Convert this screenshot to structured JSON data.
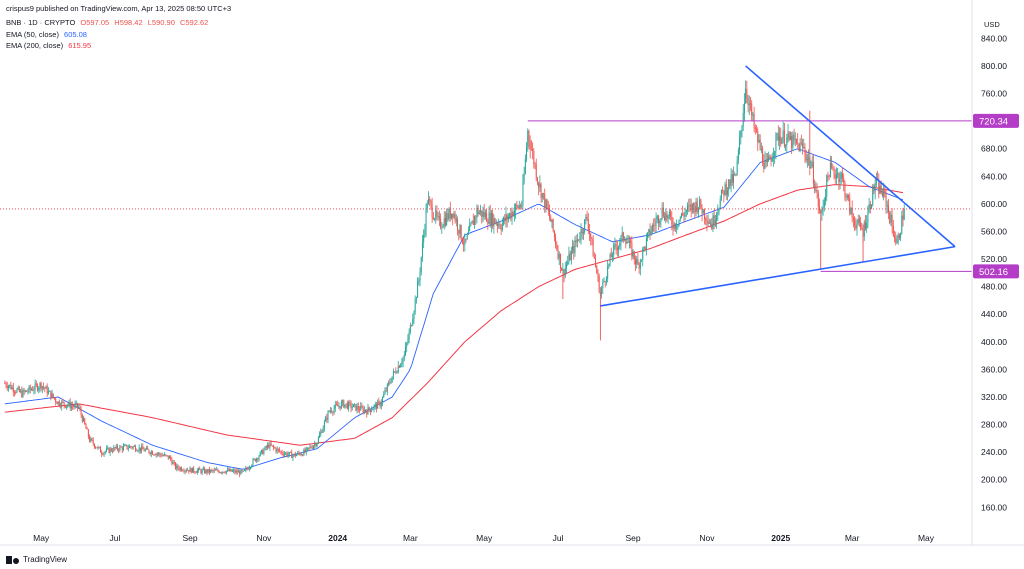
{
  "header": {
    "publisher_line": "crispus9 published on TradingView.com, Apr 13, 2025 08:50 UTC+3"
  },
  "legend": {
    "symbol_line": {
      "symbol": "BNB · 1D · CRYPTO",
      "open": "O597.05",
      "high": "H598.42",
      "low": "L590.90",
      "close": "C592.62"
    },
    "ema50": {
      "label": "EMA (50, close)",
      "value": "605.08"
    },
    "ema200": {
      "label": "EMA (200, close)",
      "value": "615.95"
    }
  },
  "currency": "USD",
  "colors": {
    "up": "#26a69a",
    "down": "#ef5350",
    "ema50": "#2962ff",
    "ema200": "#f23645",
    "trendline": "#2962ff",
    "level": "#b33dc6",
    "price_line": "#f23645"
  },
  "footer": {
    "brand": "TradingView"
  },
  "chart_data": {
    "type": "candlestick",
    "y_axis": {
      "ticks": [
        "160.00",
        "200.00",
        "240.00",
        "280.00",
        "320.00",
        "360.00",
        "400.00",
        "440.00",
        "480.00",
        "520.00",
        "560.00",
        "600.00",
        "640.00",
        "680.00",
        "720.00",
        "760.00",
        "800.00",
        "840.00"
      ],
      "range": [
        130,
        855
      ]
    },
    "x_axis": {
      "ticks": [
        "May",
        "Jul",
        "Sep",
        "Nov",
        "2024",
        "Mar",
        "May",
        "Jul",
        "Sep",
        "Nov",
        "2025",
        "Mar",
        "May"
      ],
      "bold_ticks": [
        "2024",
        "2025"
      ]
    },
    "price_labels": [
      {
        "text": "720.34",
        "value": 720.34,
        "kind": "level"
      },
      {
        "text": "502.16",
        "value": 502.16,
        "kind": "level"
      }
    ],
    "current_price": 592.62,
    "horizontal_levels": [
      720.34,
      502.16
    ],
    "trendlines": [
      {
        "name": "descending",
        "from": [
          "2024-12-03",
          800
        ],
        "to": [
          "2025-05-25",
          538
        ]
      },
      {
        "name": "ascending",
        "from": [
          "2024-08-05",
          452
        ],
        "to": [
          "2025-05-25",
          538
        ]
      }
    ],
    "close_path": [
      [
        "2023-04-01",
        340
      ],
      [
        "2023-04-15",
        325
      ],
      [
        "2023-05-01",
        338
      ],
      [
        "2023-05-15",
        312
      ],
      [
        "2023-06-01",
        305
      ],
      [
        "2023-06-10",
        258
      ],
      [
        "2023-06-20",
        240
      ],
      [
        "2023-07-01",
        245
      ],
      [
        "2023-07-15",
        248
      ],
      [
        "2023-08-01",
        240
      ],
      [
        "2023-08-15",
        232
      ],
      [
        "2023-08-20",
        218
      ],
      [
        "2023-09-01",
        214
      ],
      [
        "2023-09-15",
        212
      ],
      [
        "2023-10-01",
        213
      ],
      [
        "2023-10-15",
        210
      ],
      [
        "2023-10-25",
        230
      ],
      [
        "2023-11-05",
        250
      ],
      [
        "2023-11-15",
        240
      ],
      [
        "2023-11-25",
        235
      ],
      [
        "2023-12-05",
        240
      ],
      [
        "2023-12-15",
        255
      ],
      [
        "2023-12-25",
        300
      ],
      [
        "2024-01-05",
        310
      ],
      [
        "2024-01-15",
        305
      ],
      [
        "2024-01-25",
        300
      ],
      [
        "2024-02-05",
        310
      ],
      [
        "2024-02-15",
        350
      ],
      [
        "2024-02-25",
        380
      ],
      [
        "2024-03-01",
        420
      ],
      [
        "2024-03-08",
        490
      ],
      [
        "2024-03-15",
        605
      ],
      [
        "2024-03-25",
        570
      ],
      [
        "2024-04-05",
        590
      ],
      [
        "2024-04-15",
        540
      ],
      [
        "2024-04-25",
        590
      ],
      [
        "2024-05-05",
        580
      ],
      [
        "2024-05-15",
        570
      ],
      [
        "2024-05-25",
        590
      ],
      [
        "2024-06-01",
        600
      ],
      [
        "2024-06-06",
        705
      ],
      [
        "2024-06-15",
        630
      ],
      [
        "2024-06-25",
        575
      ],
      [
        "2024-07-05",
        500
      ],
      [
        "2024-07-15",
        540
      ],
      [
        "2024-07-25",
        580
      ],
      [
        "2024-08-05",
        470
      ],
      [
        "2024-08-15",
        530
      ],
      [
        "2024-08-25",
        555
      ],
      [
        "2024-09-05",
        510
      ],
      [
        "2024-09-15",
        560
      ],
      [
        "2024-09-25",
        590
      ],
      [
        "2024-10-05",
        570
      ],
      [
        "2024-10-15",
        590
      ],
      [
        "2024-10-25",
        600
      ],
      [
        "2024-11-05",
        570
      ],
      [
        "2024-11-15",
        620
      ],
      [
        "2024-11-25",
        640
      ],
      [
        "2024-12-03",
        770
      ],
      [
        "2024-12-10",
        710
      ],
      [
        "2024-12-20",
        650
      ],
      [
        "2024-12-30",
        700
      ],
      [
        "2025-01-10",
        690
      ],
      [
        "2025-01-20",
        680
      ],
      [
        "2025-01-27",
        650
      ],
      [
        "2025-02-03",
        580
      ],
      [
        "2025-02-10",
        650
      ],
      [
        "2025-02-20",
        640
      ],
      [
        "2025-03-01",
        580
      ],
      [
        "2025-03-10",
        560
      ],
      [
        "2025-03-20",
        630
      ],
      [
        "2025-03-28",
        610
      ],
      [
        "2025-04-07",
        540
      ],
      [
        "2025-04-13",
        592.62
      ]
    ],
    "wick_spikes": [
      [
        "2024-08-05",
        402
      ],
      [
        "2025-02-03",
        505
      ],
      [
        "2025-01-25",
        735
      ],
      [
        "2025-03-10",
        515
      ],
      [
        "2024-07-05",
        462
      ]
    ],
    "ema50_path": [
      [
        "2023-04-01",
        310
      ],
      [
        "2023-05-15",
        320
      ],
      [
        "2023-06-20",
        285
      ],
      [
        "2023-08-01",
        250
      ],
      [
        "2023-09-15",
        225
      ],
      [
        "2023-10-15",
        215
      ],
      [
        "2023-11-15",
        232
      ],
      [
        "2023-12-15",
        245
      ],
      [
        "2024-01-15",
        290
      ],
      [
        "2024-02-15",
        320
      ],
      [
        "2024-03-01",
        360
      ],
      [
        "2024-03-20",
        470
      ],
      [
        "2024-04-15",
        555
      ],
      [
        "2024-05-15",
        575
      ],
      [
        "2024-06-15",
        600
      ],
      [
        "2024-07-15",
        570
      ],
      [
        "2024-08-15",
        545
      ],
      [
        "2024-09-15",
        555
      ],
      [
        "2024-10-15",
        575
      ],
      [
        "2024-11-15",
        595
      ],
      [
        "2024-12-15",
        660
      ],
      [
        "2025-01-15",
        680
      ],
      [
        "2025-02-15",
        660
      ],
      [
        "2025-03-15",
        625
      ],
      [
        "2025-04-13",
        605.08
      ]
    ],
    "ema200_path": [
      [
        "2023-04-01",
        298
      ],
      [
        "2023-06-01",
        310
      ],
      [
        "2023-08-01",
        290
      ],
      [
        "2023-10-01",
        265
      ],
      [
        "2023-12-01",
        250
      ],
      [
        "2024-01-15",
        260
      ],
      [
        "2024-02-15",
        290
      ],
      [
        "2024-03-15",
        340
      ],
      [
        "2024-04-15",
        400
      ],
      [
        "2024-05-15",
        445
      ],
      [
        "2024-06-15",
        480
      ],
      [
        "2024-07-15",
        505
      ],
      [
        "2024-08-15",
        520
      ],
      [
        "2024-09-15",
        535
      ],
      [
        "2024-10-15",
        555
      ],
      [
        "2024-11-15",
        575
      ],
      [
        "2024-12-15",
        600
      ],
      [
        "2025-01-15",
        620
      ],
      [
        "2025-02-15",
        628
      ],
      [
        "2025-03-15",
        625
      ],
      [
        "2025-04-13",
        615.95
      ]
    ]
  }
}
